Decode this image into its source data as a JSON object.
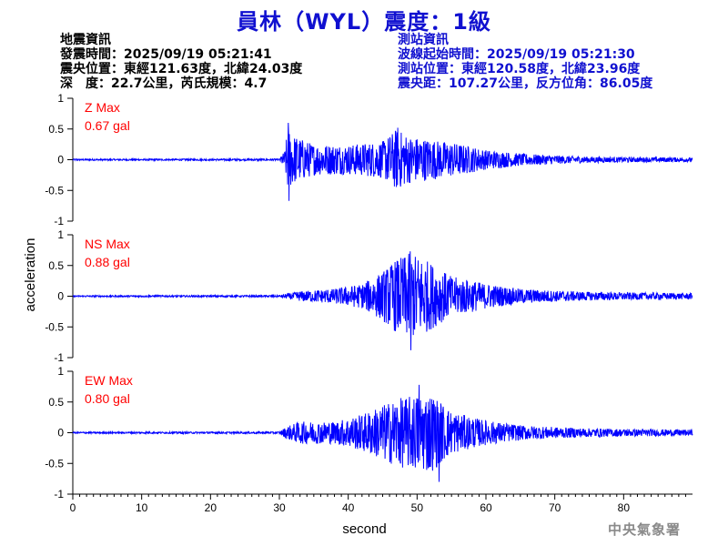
{
  "title": "員林（WYL）震度：1級",
  "earthquake": {
    "header": "地震資訊",
    "origin_time": "發震時間：2025/09/19 05:21:41",
    "epicenter": "震央位置：東經121.63度，北緯24.03度",
    "depth_magnitude": "深　度：22.7公里，芮氏規模：4.7"
  },
  "station": {
    "header": "測站資訊",
    "wave_onset": "波線起始時間：2025/09/19 05:21:30",
    "location": "測站位置：東經120.58度，北緯23.96度",
    "distance_azimuth": "震央距：107.27公里，反方位角：86.05度"
  },
  "credit": "中央氣象署",
  "colors": {
    "title": "#1010d0",
    "trace": "#0000ff",
    "peak_label": "#ff0000"
  },
  "chart_data": {
    "type": "line",
    "xlabel": "second",
    "ylabel": "acceleration",
    "xlim": [
      0,
      90
    ],
    "xticks": [
      0,
      10,
      20,
      30,
      40,
      50,
      60,
      70,
      80
    ],
    "ylim": [
      -1,
      1
    ],
    "yticks": [
      -1,
      -0.5,
      0,
      0.5,
      1
    ],
    "ytick_labels": [
      "-1",
      "-0.5",
      "0",
      "0.5",
      "1"
    ],
    "grid": false,
    "series": [
      {
        "name": "Z",
        "peak_label": "Z Max",
        "peak_value": "0.67 gal",
        "envelope": {
          "t": [
            0,
            30,
            30.8,
            31.2,
            32,
            35,
            40,
            45,
            47,
            49,
            52,
            56,
            60,
            65,
            70,
            75,
            80,
            85,
            90
          ],
          "amp": [
            0.012,
            0.015,
            0.15,
            0.52,
            0.4,
            0.25,
            0.24,
            0.3,
            0.5,
            0.38,
            0.33,
            0.26,
            0.16,
            0.1,
            0.07,
            0.05,
            0.04,
            0.04,
            0.035
          ]
        },
        "peaks": [
          {
            "t": 31.3,
            "v": 0.6
          },
          {
            "t": 31.4,
            "v": -0.67
          },
          {
            "t": 47.2,
            "v": 0.52
          }
        ]
      },
      {
        "name": "NS",
        "peak_label": "NS Max",
        "peak_value": "0.88 gal",
        "envelope": {
          "t": [
            0,
            30,
            31,
            33,
            38,
            42,
            45,
            47,
            49,
            51,
            55,
            58,
            60,
            65,
            70,
            75,
            80,
            85,
            90
          ],
          "amp": [
            0.012,
            0.015,
            0.04,
            0.08,
            0.12,
            0.2,
            0.4,
            0.6,
            0.7,
            0.62,
            0.32,
            0.26,
            0.2,
            0.12,
            0.09,
            0.07,
            0.06,
            0.055,
            0.05
          ]
        },
        "peaks": [
          {
            "t": 49.0,
            "v": 0.73
          },
          {
            "t": 49.1,
            "v": -0.88
          }
        ]
      },
      {
        "name": "EW",
        "peak_label": "EW Max",
        "peak_value": "0.80 gal",
        "envelope": {
          "t": [
            0,
            30,
            31,
            33,
            38,
            42,
            45,
            47,
            50,
            52,
            53,
            55,
            58,
            60,
            65,
            70,
            75,
            80,
            85,
            90
          ],
          "amp": [
            0.012,
            0.015,
            0.1,
            0.18,
            0.18,
            0.3,
            0.45,
            0.55,
            0.62,
            0.65,
            0.55,
            0.35,
            0.25,
            0.2,
            0.12,
            0.09,
            0.07,
            0.06,
            0.055,
            0.05
          ]
        },
        "peaks": [
          {
            "t": 50.3,
            "v": 0.78
          },
          {
            "t": 53.2,
            "v": -0.8
          }
        ]
      }
    ]
  }
}
